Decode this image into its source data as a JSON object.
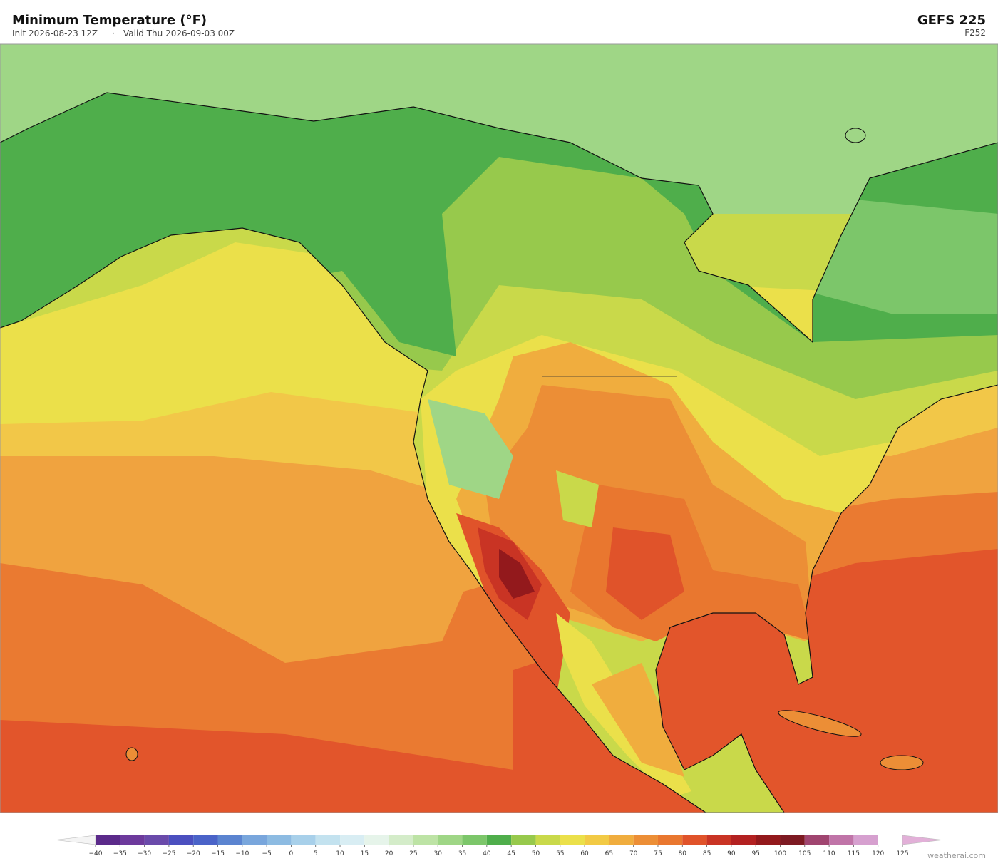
{
  "header": {
    "title": "Minimum Temperature  (°F)",
    "init": "Init 2026-08-23 12Z",
    "separator": "·",
    "valid": "Valid Thu 2026-09-03 00Z",
    "model": "GEFS  225",
    "forecast_hour": "F252"
  },
  "colorbar": {
    "ticks": [
      {
        "value": -40,
        "label": "−40"
      },
      {
        "value": -35,
        "label": "−35"
      },
      {
        "value": -30,
        "label": "−30"
      },
      {
        "value": -25,
        "label": "−25"
      },
      {
        "value": -20,
        "label": "−20"
      },
      {
        "value": -15,
        "label": "−15"
      },
      {
        "value": -10,
        "label": "−10"
      },
      {
        "value": -5,
        "label": "−5"
      },
      0,
      5,
      10,
      15,
      20,
      25,
      30,
      35,
      40,
      45,
      50,
      55,
      60,
      65,
      70,
      75,
      80,
      85,
      90,
      95,
      100,
      105,
      110,
      115,
      120,
      125
    ],
    "colors": [
      "#5b2a8a",
      "#6d3a9c",
      "#6a4aaa",
      "#4b4fbf",
      "#4a63c8",
      "#5b84d0",
      "#79a6dc",
      "#8dbbe2",
      "#a8d0ea",
      "#c3e2ef",
      "#d8edf3",
      "#e6f4ea",
      "#d4ecc9",
      "#bde3a5",
      "#9fd686",
      "#7cc66a",
      "#4fae4b",
      "#97c94c",
      "#c9d94a",
      "#ebe04a",
      "#f2ca45",
      "#f0ad3e",
      "#ec8e36",
      "#e9772f",
      "#e0532a",
      "#c93424",
      "#b32121",
      "#93191c",
      "#7d1a22",
      "#a04570",
      "#c074a8",
      "#d6a0cf"
    ],
    "under_color": "#f4f4f4",
    "over_color": "#e2b0d8"
  },
  "watermark": "weatherai.com"
}
